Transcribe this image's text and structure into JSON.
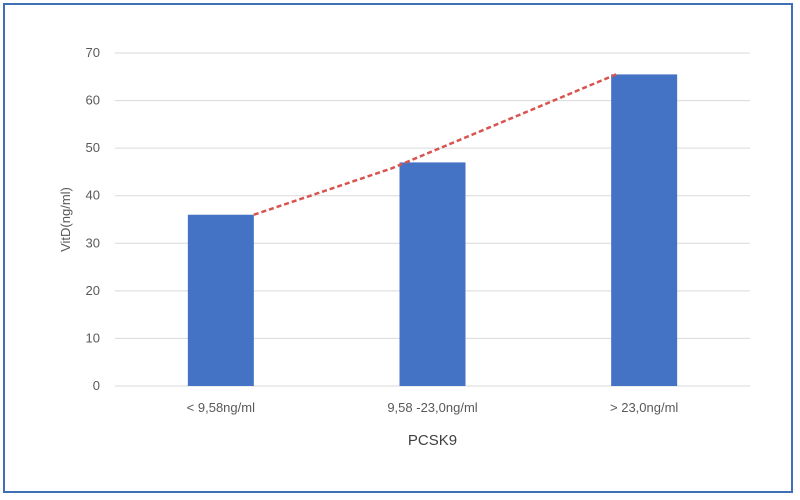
{
  "chart_data": {
    "type": "bar",
    "categories": [
      "< 9,58ng/ml",
      "9,58 -23,0ng/ml",
      "> 23,0ng/ml"
    ],
    "values": [
      36,
      47,
      65.5
    ],
    "xlabel": "PCSK9",
    "ylabel": "VitD(ng/ml)",
    "ylim": [
      0,
      70
    ],
    "yticks": [
      0,
      10,
      20,
      30,
      40,
      50,
      60,
      70
    ],
    "grid": true,
    "legend": "none",
    "trendline": {
      "style": "dashed",
      "color": "#d9534f"
    },
    "colors": {
      "bar": "#4472c4",
      "grid": "#d9d9d9",
      "frame": "#3f6fb5"
    }
  }
}
